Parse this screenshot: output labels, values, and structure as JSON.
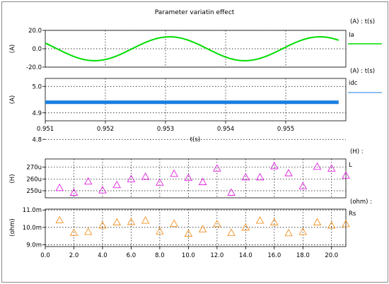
{
  "chart_data": [
    {
      "type": "line",
      "title": "Parameter variatin effect",
      "unit_label": "(A) : t(s)",
      "ylabel": "(A)",
      "xlim": [
        0.951,
        0.956
      ],
      "ylim": [
        -20,
        20
      ],
      "yticks": [
        "20.0",
        "0.0",
        "-20.0"
      ],
      "grid": true,
      "series": [
        {
          "name": "Ia",
          "color": "#00dd00",
          "amplitude": 13,
          "period": 0.0025,
          "peak_at": 0.95307,
          "x": [
            0.951,
            0.9515,
            0.952,
            0.9525,
            0.953,
            0.9535,
            0.954,
            0.9545,
            0.955,
            0.9555,
            0.95588
          ],
          "y": [
            5.2,
            -9.2,
            -12.2,
            0.0,
            12.8,
            7.5,
            -9.8,
            -12.0,
            2.8,
            12.9,
            5.5
          ]
        }
      ]
    },
    {
      "type": "line",
      "unit_label": "(A) : t(s)",
      "ylabel": "(A)",
      "xlabel": "t(s)",
      "xlim": [
        0.951,
        0.956
      ],
      "ylim": [
        4.87,
        5.03
      ],
      "yticks": [
        "5.0",
        "4.9",
        "4.8"
      ],
      "xticks": [
        "0.951",
        "0.952",
        "0.953",
        "0.954",
        "0.955"
      ],
      "grid": true,
      "series": [
        {
          "name": "idc",
          "color": "#1a7fe0",
          "x": [
            0.951,
            0.95588
          ],
          "y": [
            4.94,
            4.94
          ]
        }
      ]
    },
    {
      "type": "scatter",
      "unit_label": "(H) :",
      "ylabel": "(H)",
      "ylim": [
        244,
        277
      ],
      "yticks": [
        "270u",
        "260u",
        "250u"
      ],
      "grid": true,
      "series": [
        {
          "name": "L",
          "color": "#e020e0",
          "marker": "triangle",
          "x": [
            1,
            2,
            3,
            4,
            5,
            6,
            7,
            8,
            9,
            10,
            11,
            12,
            13,
            14,
            15,
            16,
            17,
            18,
            19,
            20,
            21
          ],
          "y": [
            252.5,
            248.5,
            258,
            250.5,
            255,
            260,
            262,
            257,
            264.5,
            261,
            257.5,
            269,
            248.5,
            261.5,
            261.5,
            271,
            265,
            254,
            270.5,
            269,
            263
          ]
        }
      ]
    },
    {
      "type": "scatter",
      "unit_label": "(ohm) :",
      "ylabel": "(ohm)",
      "ylim": [
        8.9,
        11.05
      ],
      "yticks": [
        "11.0m",
        "10.0m",
        "9.0m"
      ],
      "xlim": [
        0,
        21
      ],
      "xticks": [
        "0.0",
        "2.0",
        "4.0",
        "6.0",
        "8.0",
        "10.0",
        "12.0",
        "14.0",
        "16.0",
        "18.0",
        "20.0"
      ],
      "grid": true,
      "series": [
        {
          "name": "Rs",
          "color": "#f09020",
          "marker": "triangle",
          "x": [
            1,
            2,
            3,
            4,
            5,
            6,
            7,
            8,
            9,
            10,
            11,
            12,
            13,
            14,
            15,
            16,
            17,
            18,
            19,
            20,
            21
          ],
          "y": [
            10.42,
            9.7,
            9.75,
            10.12,
            10.3,
            10.32,
            10.4,
            9.78,
            10.22,
            9.65,
            9.9,
            10.2,
            9.7,
            10.0,
            10.4,
            10.3,
            9.68,
            9.75,
            10.3,
            10.12,
            10.2
          ]
        }
      ]
    }
  ]
}
